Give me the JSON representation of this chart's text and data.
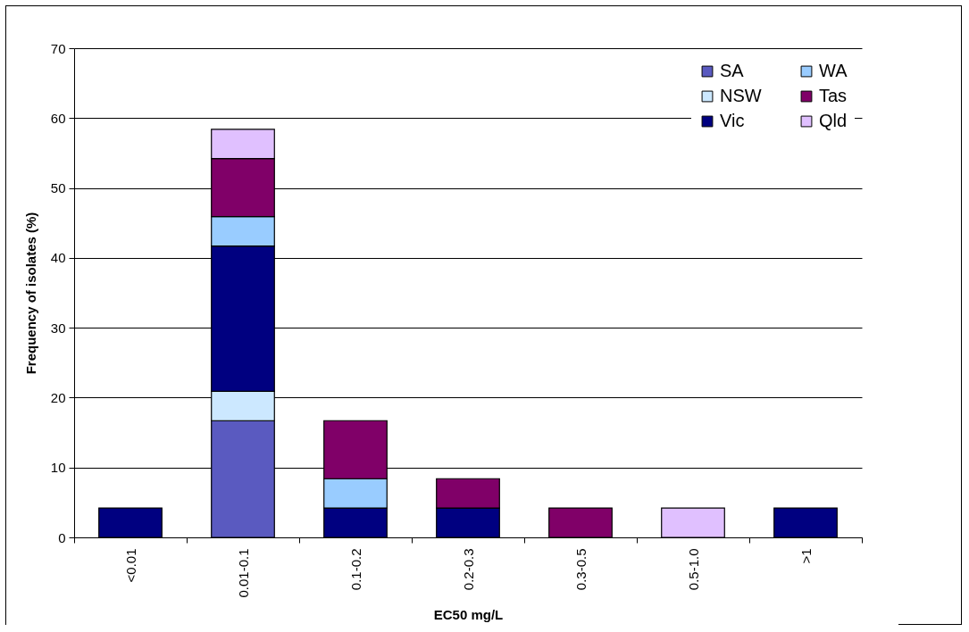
{
  "chart_data": {
    "type": "bar",
    "stacked": true,
    "xlabel": "EC50 mg/L",
    "ylabel": "Frequency of isolates (%)",
    "categories": [
      "<0.01",
      "0.01-0.1",
      "0.1-0.2",
      "0.2-0.3",
      "0.3-0.5",
      "0.5-1.0",
      ">1"
    ],
    "series": [
      {
        "name": "SA",
        "color": "#5a5ac0",
        "values": [
          null,
          16.7,
          null,
          null,
          null,
          null,
          null
        ]
      },
      {
        "name": "NSW",
        "color": "#cce8ff",
        "values": [
          null,
          4.2,
          null,
          null,
          null,
          null,
          null
        ]
      },
      {
        "name": "Vic",
        "color": "#000080",
        "values": [
          4.2,
          20.8,
          4.2,
          4.2,
          null,
          null,
          4.2
        ]
      },
      {
        "name": "WA",
        "color": "#99ccff",
        "values": [
          null,
          4.2,
          4.2,
          null,
          null,
          null,
          null
        ]
      },
      {
        "name": "Tas",
        "color": "#800068",
        "values": [
          null,
          8.3,
          8.3,
          4.2,
          4.2,
          null,
          null
        ]
      },
      {
        "name": "Qld",
        "color": "#e0c0ff",
        "values": [
          null,
          4.2,
          null,
          null,
          null,
          4.2,
          null
        ]
      }
    ],
    "ylim": [
      0,
      70
    ],
    "yticks": [
      0,
      10,
      20,
      30,
      40,
      50,
      60,
      70
    ],
    "grid": "y",
    "legend": "top right"
  }
}
